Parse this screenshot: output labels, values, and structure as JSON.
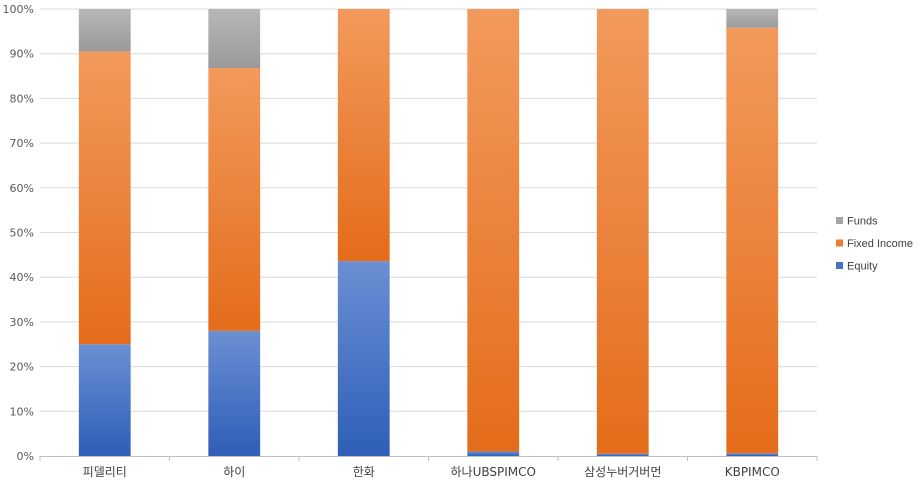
{
  "chart_data": {
    "type": "bar",
    "stacked": true,
    "percent_stacked": true,
    "categories": [
      "피델리티",
      "하이",
      "한화",
      "하나UBSPIMCO",
      "삼성누버거버먼",
      "KBPIMCO"
    ],
    "series": [
      {
        "name": "Equity",
        "color": "#4472C4",
        "values": [
          25,
          28,
          43.6,
          1,
          0.5,
          0.6
        ]
      },
      {
        "name": "Fixed Income",
        "color": "#ED7D31",
        "values": [
          65.5,
          58.8,
          56.4,
          99,
          99.5,
          95.2
        ]
      },
      {
        "name": "Funds",
        "color": "#A5A5A5",
        "values": [
          9.5,
          13.2,
          0,
          0,
          0,
          4.2
        ]
      }
    ],
    "ylim": [
      0,
      100
    ],
    "yticks": [
      "0%",
      "10%",
      "20%",
      "30%",
      "40%",
      "50%",
      "60%",
      "70%",
      "80%",
      "90%",
      "100%"
    ],
    "grid": true,
    "legend_position": "right"
  }
}
